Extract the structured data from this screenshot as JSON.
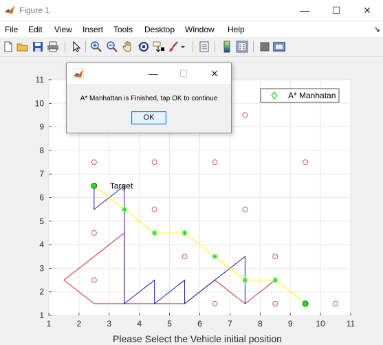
{
  "window": {
    "title": "Figure 1",
    "minimize_glyph": "—",
    "maximize_glyph": "☐",
    "close_glyph": "✕"
  },
  "menubar": {
    "items": [
      "File",
      "Edit",
      "View",
      "Insert",
      "Tools",
      "Desktop",
      "Window",
      "Help"
    ],
    "overflow_glyph": "↘"
  },
  "toolbar": {
    "icons": [
      "new-figure-icon",
      "open-file-icon",
      "save-icon",
      "print-icon",
      "edit-plot-arrow-icon",
      "zoom-in-icon",
      "zoom-out-icon",
      "pan-hand-icon",
      "rotate-3d-icon",
      "data-cursor-icon",
      "brush-icon",
      "link-plot-icon",
      "insert-colorbar-icon",
      "insert-legend-icon",
      "hide-plot-tools-icon",
      "show-plot-tools-icon"
    ]
  },
  "dialog": {
    "message": "A* Manhattan is Finished, tap OK to continue",
    "ok_label": "OK",
    "minimize_glyph": "—",
    "maximize_glyph": "☐",
    "close_glyph": "✕"
  },
  "colors": {
    "obstacle": "#d9534f",
    "path": "#ffff00",
    "path_marker": "#22dd22",
    "blue_line": "#1a1aaa",
    "red_line": "#cc3333",
    "grid": "#e6e6e6"
  },
  "chart_data": {
    "type": "scatter",
    "xlabel": "Please Select the Vehicle initial position",
    "ylabel": "",
    "xlim": [
      1,
      11
    ],
    "ylim": [
      1,
      11
    ],
    "xticks": [
      1,
      2,
      3,
      4,
      5,
      6,
      7,
      8,
      9,
      10,
      11
    ],
    "yticks": [
      1,
      2,
      3,
      4,
      5,
      6,
      7,
      8,
      9,
      10,
      11
    ],
    "grid": true,
    "legend": {
      "position": "top-right",
      "entries": [
        {
          "name": "A* Manhatan",
          "marker": "diamond",
          "color": "#22dd22"
        }
      ]
    },
    "annotations": [
      {
        "text": "Target",
        "x": 3.0,
        "y": 6.5
      }
    ],
    "obstacles": [
      [
        2.5,
        7.5
      ],
      [
        4.5,
        7.5
      ],
      [
        6.5,
        7.5
      ],
      [
        9.5,
        7.5
      ],
      [
        7.5,
        9.5
      ],
      [
        4.5,
        5.5
      ],
      [
        7.5,
        5.5
      ],
      [
        2.5,
        4.5
      ],
      [
        5.5,
        3.5
      ],
      [
        8.5,
        3.5
      ],
      [
        2.5,
        2.5
      ],
      [
        6.5,
        1.5
      ],
      [
        8.5,
        1.5
      ],
      [
        10.5,
        1.5
      ]
    ],
    "series": [
      {
        "name": "A* Manhatan",
        "x": [
          9.5,
          8.5,
          7.5,
          6.5,
          5.5,
          4.5,
          3.5,
          2.5
        ],
        "y": [
          1.5,
          2.5,
          2.5,
          3.5,
          4.5,
          4.5,
          5.5,
          6.5
        ]
      }
    ],
    "start_point": [
      9.5,
      1.5
    ],
    "target_point": [
      2.5,
      6.5
    ],
    "blue_polyline": {
      "x": [
        2.5,
        2.5,
        3.5,
        3.5,
        3.5,
        4.5,
        4.5,
        4.5,
        5.5,
        5.5,
        6.5,
        7.5,
        7.5,
        7.5
      ],
      "y": [
        6.5,
        5.5,
        6.5,
        6.5,
        1.5,
        2.5,
        1.5,
        1.5,
        2.5,
        1.5,
        2.5,
        3.5,
        1.5,
        1.5
      ]
    },
    "red_polyline": {
      "x": [
        3.5,
        1.5,
        2.5,
        5.5,
        6.5,
        7.5,
        8.5
      ],
      "y": [
        4.5,
        2.5,
        1.5,
        1.5,
        2.5,
        1.5,
        2.5
      ]
    },
    "red_polyline2": {
      "x": [
        3.5,
        3.5
      ],
      "y": [
        4.5,
        1.5
      ]
    }
  }
}
